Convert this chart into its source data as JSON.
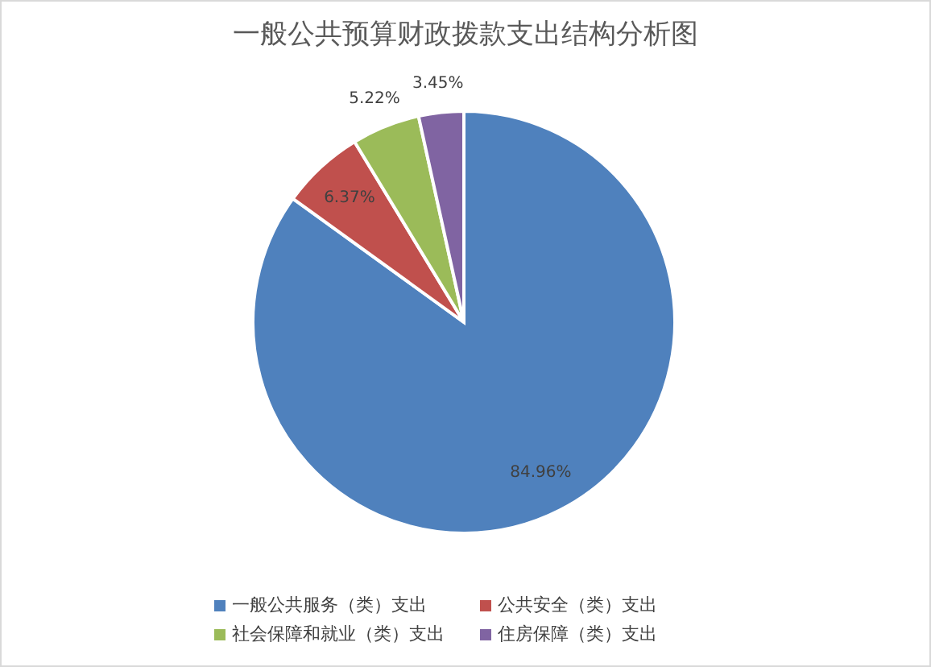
{
  "chart_data": {
    "type": "pie",
    "title": "一般公共预算财政拨款支出结构分析图",
    "categories": [
      "一般公共服务（类）支出",
      "公共安全（类）支出",
      "社会保障和就业（类）支出",
      "住房保障（类）支出"
    ],
    "values": [
      84.96,
      6.37,
      5.22,
      3.45
    ],
    "colors": [
      "#4f81bd",
      "#c0504d",
      "#9bbb59",
      "#8064a2"
    ],
    "value_labels": [
      "84.96%",
      "6.37%",
      "5.22%",
      "3.45%"
    ],
    "legend": "bottom"
  }
}
